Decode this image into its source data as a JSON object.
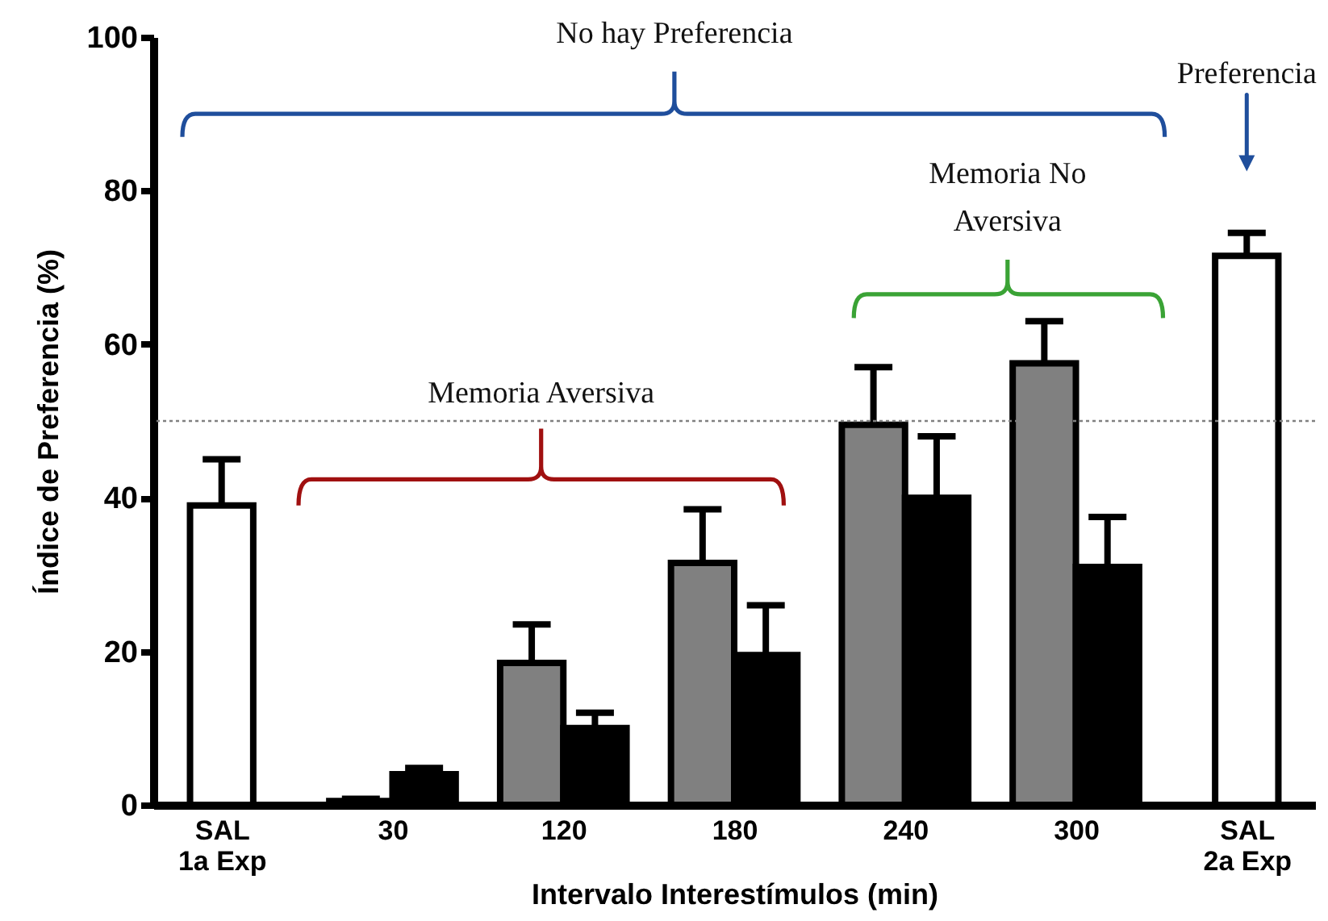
{
  "chart_data": {
    "type": "bar",
    "categories": [
      "SAL\n1a Exp",
      "30",
      "120",
      "180",
      "240",
      "300",
      "SAL\n2a Exp"
    ],
    "series": [
      {
        "color": "#ffffff",
        "values": [
          39,
          null,
          null,
          null,
          null,
          null,
          71.5
        ],
        "errors": [
          6,
          null,
          null,
          null,
          null,
          null,
          3
        ]
      },
      {
        "color": "#808080",
        "values": [
          null,
          0.5,
          18.5,
          31.5,
          49.5,
          57.5,
          null
        ],
        "errors": [
          null,
          0.3,
          5,
          7,
          7.5,
          5.5,
          null
        ]
      },
      {
        "color": "#000000",
        "values": [
          null,
          4,
          10,
          19.5,
          40,
          31,
          null
        ],
        "errors": [
          null,
          0.8,
          2,
          6.5,
          8,
          6.5,
          null
        ]
      }
    ],
    "xlabel": "Intervalo Interestímulos (min)",
    "ylabel": "Índice de Preferencia (%)",
    "ylim": [
      0,
      100
    ],
    "yticks": [
      0,
      20,
      40,
      60,
      80,
      100
    ],
    "grid": false,
    "ref_lines": [
      {
        "axis": "y",
        "value": 50,
        "color": "#808080",
        "line_style": "dotted"
      }
    ],
    "annotations": [
      "No hay Preferencia",
      "Memoria Aversiva",
      "Memoria No Aversiva",
      "Preferencia"
    ]
  }
}
